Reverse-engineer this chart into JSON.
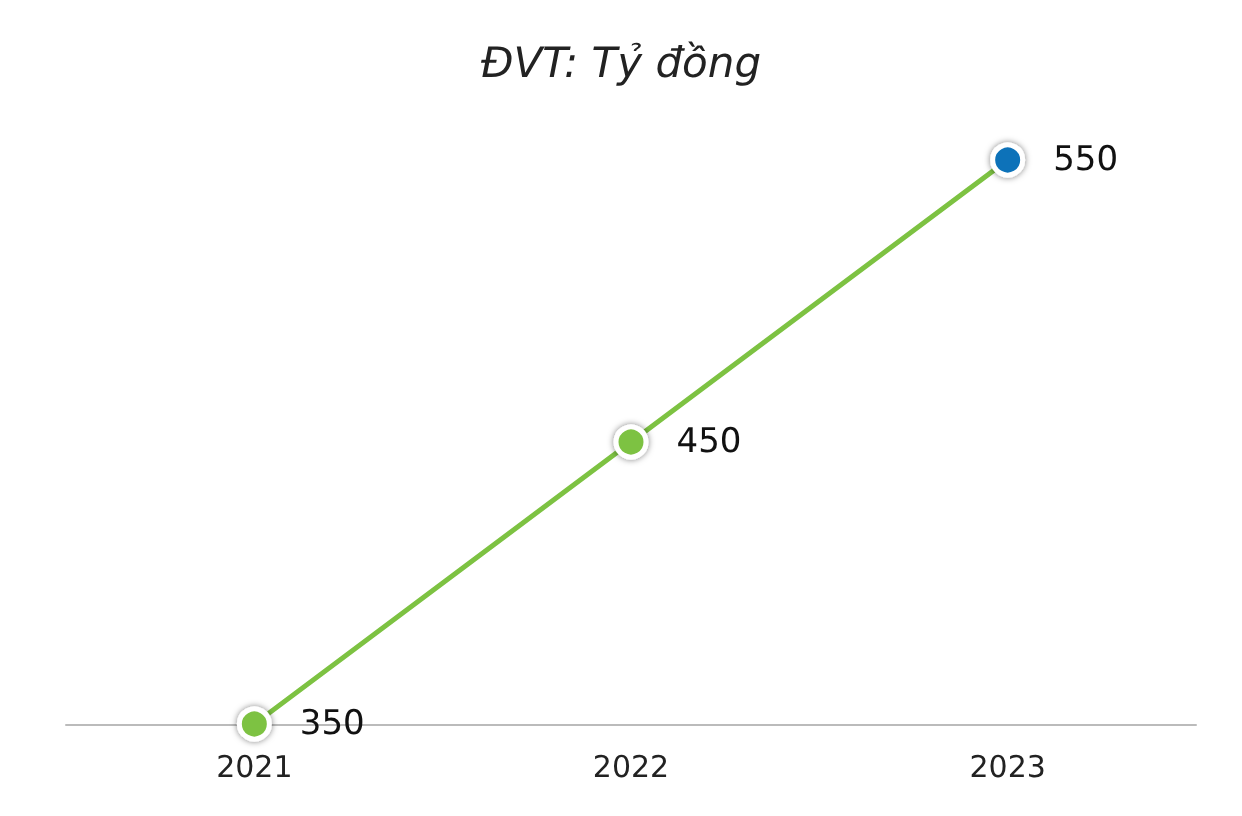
{
  "chart_data": {
    "type": "line",
    "title": "ĐVT: Tỷ đồng",
    "categories": [
      "2021",
      "2022",
      "2023"
    ],
    "series": [
      {
        "color": "#7dc242",
        "colors": [
          "#7dc242",
          "#7dc242",
          "#0b72b9"
        ],
        "values": [
          350,
          450,
          550
        ]
      }
    ],
    "data_labels": true,
    "tick_labels": "x",
    "marker": "circle",
    "line_style": "solid"
  }
}
